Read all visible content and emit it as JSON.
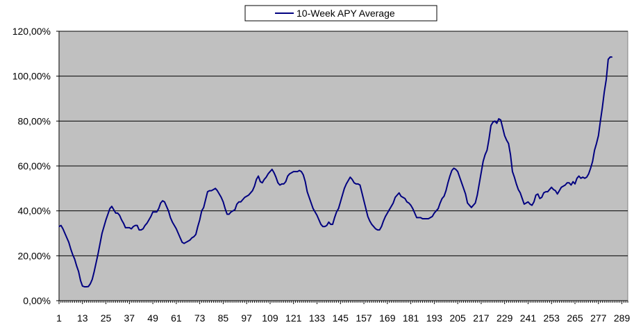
{
  "chart_data": {
    "type": "line",
    "title": "",
    "xlabel": "",
    "ylabel": "",
    "legend": {
      "position": "top",
      "entries": [
        "10-Week APY Average"
      ]
    },
    "xlim": [
      1,
      292
    ],
    "ylim": [
      0,
      120
    ],
    "x_ticks": [
      1,
      13,
      25,
      37,
      49,
      61,
      73,
      85,
      97,
      109,
      121,
      133,
      145,
      157,
      169,
      181,
      193,
      205,
      217,
      229,
      241,
      253,
      265,
      277,
      289
    ],
    "y_ticks": [
      0,
      20,
      40,
      60,
      80,
      100,
      120
    ],
    "y_tick_labels": [
      "0,00%",
      "20,00%",
      "40,00%",
      "60,00%",
      "80,00%",
      "100,00%",
      "120,00%"
    ],
    "grid": {
      "horizontal": true,
      "vertical": false
    },
    "colors": {
      "plot_background": "#c0c0c0",
      "series": "#000080",
      "gridline": "#000000"
    },
    "series": [
      {
        "name": "10-Week APY Average",
        "points": [
          [
            1,
            33
          ],
          [
            2,
            33.5
          ],
          [
            3,
            32
          ],
          [
            4,
            30
          ],
          [
            5,
            28
          ],
          [
            6,
            26
          ],
          [
            7,
            23
          ],
          [
            8,
            20.5
          ],
          [
            9,
            18.5
          ],
          [
            10,
            15.5
          ],
          [
            11,
            13
          ],
          [
            12,
            9
          ],
          [
            13,
            6.5
          ],
          [
            14,
            6.2
          ],
          [
            15,
            6.2
          ],
          [
            16,
            6.3
          ],
          [
            17,
            7.5
          ],
          [
            18,
            9.5
          ],
          [
            19,
            13
          ],
          [
            20,
            17
          ],
          [
            21,
            21
          ],
          [
            22,
            25.5
          ],
          [
            23,
            30
          ],
          [
            24,
            33
          ],
          [
            25,
            36
          ],
          [
            26,
            38.5
          ],
          [
            27,
            41
          ],
          [
            28,
            42
          ],
          [
            29,
            40.5
          ],
          [
            30,
            39
          ],
          [
            31,
            39
          ],
          [
            32,
            38
          ],
          [
            33,
            36
          ],
          [
            34,
            34.5
          ],
          [
            35,
            32.5
          ],
          [
            36,
            32.5
          ],
          [
            37,
            32.5
          ],
          [
            38,
            32
          ],
          [
            39,
            33
          ],
          [
            40,
            33.5
          ],
          [
            41,
            33.5
          ],
          [
            42,
            31.5
          ],
          [
            43,
            31.5
          ],
          [
            44,
            32
          ],
          [
            45,
            33.5
          ],
          [
            46,
            34.5
          ],
          [
            47,
            36
          ],
          [
            48,
            37.5
          ],
          [
            49,
            39.5
          ],
          [
            50,
            39.5
          ],
          [
            51,
            39.5
          ],
          [
            52,
            41
          ],
          [
            53,
            43.5
          ],
          [
            54,
            44.5
          ],
          [
            55,
            44
          ],
          [
            56,
            42
          ],
          [
            57,
            40
          ],
          [
            58,
            37
          ],
          [
            59,
            35
          ],
          [
            60,
            33.5
          ],
          [
            61,
            32
          ],
          [
            62,
            30
          ],
          [
            63,
            28
          ],
          [
            64,
            26
          ],
          [
            65,
            25.5
          ],
          [
            66,
            26
          ],
          [
            67,
            26.5
          ],
          [
            68,
            27
          ],
          [
            69,
            28
          ],
          [
            70,
            28.5
          ],
          [
            71,
            29.5
          ],
          [
            72,
            33
          ],
          [
            73,
            36
          ],
          [
            74,
            40
          ],
          [
            75,
            41.5
          ],
          [
            76,
            45
          ],
          [
            77,
            48.5
          ],
          [
            78,
            49
          ],
          [
            79,
            49
          ],
          [
            80,
            49.5
          ],
          [
            81,
            50
          ],
          [
            82,
            49
          ],
          [
            83,
            47.5
          ],
          [
            84,
            46
          ],
          [
            85,
            44
          ],
          [
            86,
            41
          ],
          [
            87,
            38.5
          ],
          [
            88,
            38.5
          ],
          [
            89,
            39.5
          ],
          [
            90,
            40
          ],
          [
            91,
            40.5
          ],
          [
            92,
            43
          ],
          [
            93,
            44
          ],
          [
            94,
            44
          ],
          [
            95,
            45
          ],
          [
            96,
            46
          ],
          [
            97,
            46.5
          ],
          [
            98,
            47
          ],
          [
            99,
            48
          ],
          [
            100,
            49
          ],
          [
            101,
            51
          ],
          [
            102,
            54
          ],
          [
            103,
            55.5
          ],
          [
            104,
            53
          ],
          [
            105,
            52.5
          ],
          [
            106,
            54
          ],
          [
            107,
            55
          ],
          [
            108,
            56.5
          ],
          [
            109,
            57.5
          ],
          [
            110,
            58.5
          ],
          [
            111,
            57
          ],
          [
            112,
            55
          ],
          [
            113,
            52.5
          ],
          [
            114,
            51.5
          ],
          [
            115,
            52
          ],
          [
            116,
            52
          ],
          [
            117,
            53
          ],
          [
            118,
            55.5
          ],
          [
            119,
            56.5
          ],
          [
            120,
            57
          ],
          [
            121,
            57.5
          ],
          [
            122,
            57.5
          ],
          [
            123,
            57.5
          ],
          [
            124,
            58
          ],
          [
            125,
            57.5
          ],
          [
            126,
            56
          ],
          [
            127,
            53
          ],
          [
            128,
            48.5
          ],
          [
            129,
            46
          ],
          [
            130,
            43.5
          ],
          [
            131,
            41
          ],
          [
            132,
            39.5
          ],
          [
            133,
            38
          ],
          [
            134,
            36
          ],
          [
            135,
            34
          ],
          [
            136,
            33
          ],
          [
            137,
            33
          ],
          [
            138,
            33.5
          ],
          [
            139,
            35
          ],
          [
            140,
            34
          ],
          [
            141,
            34
          ],
          [
            142,
            37
          ],
          [
            143,
            39.5
          ],
          [
            144,
            41
          ],
          [
            145,
            44
          ],
          [
            146,
            47
          ],
          [
            147,
            50
          ],
          [
            148,
            52
          ],
          [
            149,
            53.5
          ],
          [
            150,
            55
          ],
          [
            151,
            54
          ],
          [
            152,
            52.5
          ],
          [
            153,
            52
          ],
          [
            154,
            52
          ],
          [
            155,
            51.5
          ],
          [
            156,
            48
          ],
          [
            157,
            44.5
          ],
          [
            158,
            41
          ],
          [
            159,
            37.5
          ],
          [
            160,
            35.5
          ],
          [
            161,
            34
          ],
          [
            162,
            33
          ],
          [
            163,
            32
          ],
          [
            164,
            31.5
          ],
          [
            165,
            31.5
          ],
          [
            166,
            33
          ],
          [
            167,
            35.5
          ],
          [
            168,
            37.5
          ],
          [
            169,
            39
          ],
          [
            170,
            40.5
          ],
          [
            171,
            42
          ],
          [
            172,
            43.5
          ],
          [
            173,
            46
          ],
          [
            174,
            47
          ],
          [
            175,
            48
          ],
          [
            176,
            46.5
          ],
          [
            177,
            46
          ],
          [
            178,
            45.5
          ],
          [
            179,
            44
          ],
          [
            180,
            43.5
          ],
          [
            181,
            42.5
          ],
          [
            182,
            41
          ],
          [
            183,
            39
          ],
          [
            184,
            37
          ],
          [
            185,
            37
          ],
          [
            186,
            37
          ],
          [
            187,
            36.5
          ],
          [
            188,
            36.5
          ],
          [
            189,
            36.5
          ],
          [
            190,
            36.5
          ],
          [
            191,
            37
          ],
          [
            192,
            37.5
          ],
          [
            193,
            39
          ],
          [
            194,
            40
          ],
          [
            195,
            41
          ],
          [
            196,
            43.5
          ],
          [
            197,
            45.5
          ],
          [
            198,
            46.5
          ],
          [
            199,
            49
          ],
          [
            200,
            52.5
          ],
          [
            201,
            55.5
          ],
          [
            202,
            58
          ],
          [
            203,
            59
          ],
          [
            204,
            58.5
          ],
          [
            205,
            57.5
          ],
          [
            206,
            55
          ],
          [
            207,
            52.5
          ],
          [
            208,
            50
          ],
          [
            209,
            47.5
          ],
          [
            210,
            43.5
          ],
          [
            211,
            42.5
          ],
          [
            212,
            41.5
          ],
          [
            213,
            42.5
          ],
          [
            214,
            43.5
          ],
          [
            215,
            47
          ],
          [
            216,
            52
          ],
          [
            217,
            57
          ],
          [
            218,
            62
          ],
          [
            219,
            65
          ],
          [
            220,
            67
          ],
          [
            221,
            72
          ],
          [
            222,
            78
          ],
          [
            223,
            79.5
          ],
          [
            224,
            80
          ],
          [
            225,
            79
          ],
          [
            226,
            81
          ],
          [
            227,
            80.5
          ],
          [
            228,
            77
          ],
          [
            229,
            73.5
          ],
          [
            230,
            71.5
          ],
          [
            231,
            70
          ],
          [
            232,
            65
          ],
          [
            233,
            57.5
          ],
          [
            234,
            55
          ],
          [
            235,
            52
          ],
          [
            236,
            49.5
          ],
          [
            237,
            48
          ],
          [
            238,
            45.5
          ],
          [
            239,
            43
          ],
          [
            240,
            43.5
          ],
          [
            241,
            44
          ],
          [
            242,
            43
          ],
          [
            243,
            42.5
          ],
          [
            244,
            44
          ],
          [
            245,
            47
          ],
          [
            246,
            47.5
          ],
          [
            247,
            45.5
          ],
          [
            248,
            46
          ],
          [
            249,
            48
          ],
          [
            250,
            48.5
          ],
          [
            251,
            48.5
          ],
          [
            252,
            49.5
          ],
          [
            253,
            50.5
          ],
          [
            254,
            49.5
          ],
          [
            255,
            49
          ],
          [
            256,
            47.5
          ],
          [
            257,
            49
          ],
          [
            258,
            50.5
          ],
          [
            259,
            51
          ],
          [
            260,
            51.5
          ],
          [
            261,
            52.5
          ],
          [
            262,
            52.5
          ],
          [
            263,
            51.5
          ],
          [
            264,
            53
          ],
          [
            265,
            52
          ],
          [
            266,
            54.5
          ],
          [
            267,
            55.5
          ],
          [
            268,
            54.5
          ],
          [
            269,
            55
          ],
          [
            270,
            54.5
          ],
          [
            271,
            55
          ],
          [
            272,
            56.5
          ],
          [
            273,
            59
          ],
          [
            274,
            62
          ],
          [
            275,
            67
          ],
          [
            276,
            70
          ],
          [
            277,
            73.5
          ],
          [
            278,
            80
          ],
          [
            279,
            86
          ],
          [
            280,
            93
          ],
          [
            281,
            98.5
          ],
          [
            282,
            107.5
          ],
          [
            283,
            108.5
          ],
          [
            284,
            108.5
          ]
        ]
      }
    ]
  }
}
